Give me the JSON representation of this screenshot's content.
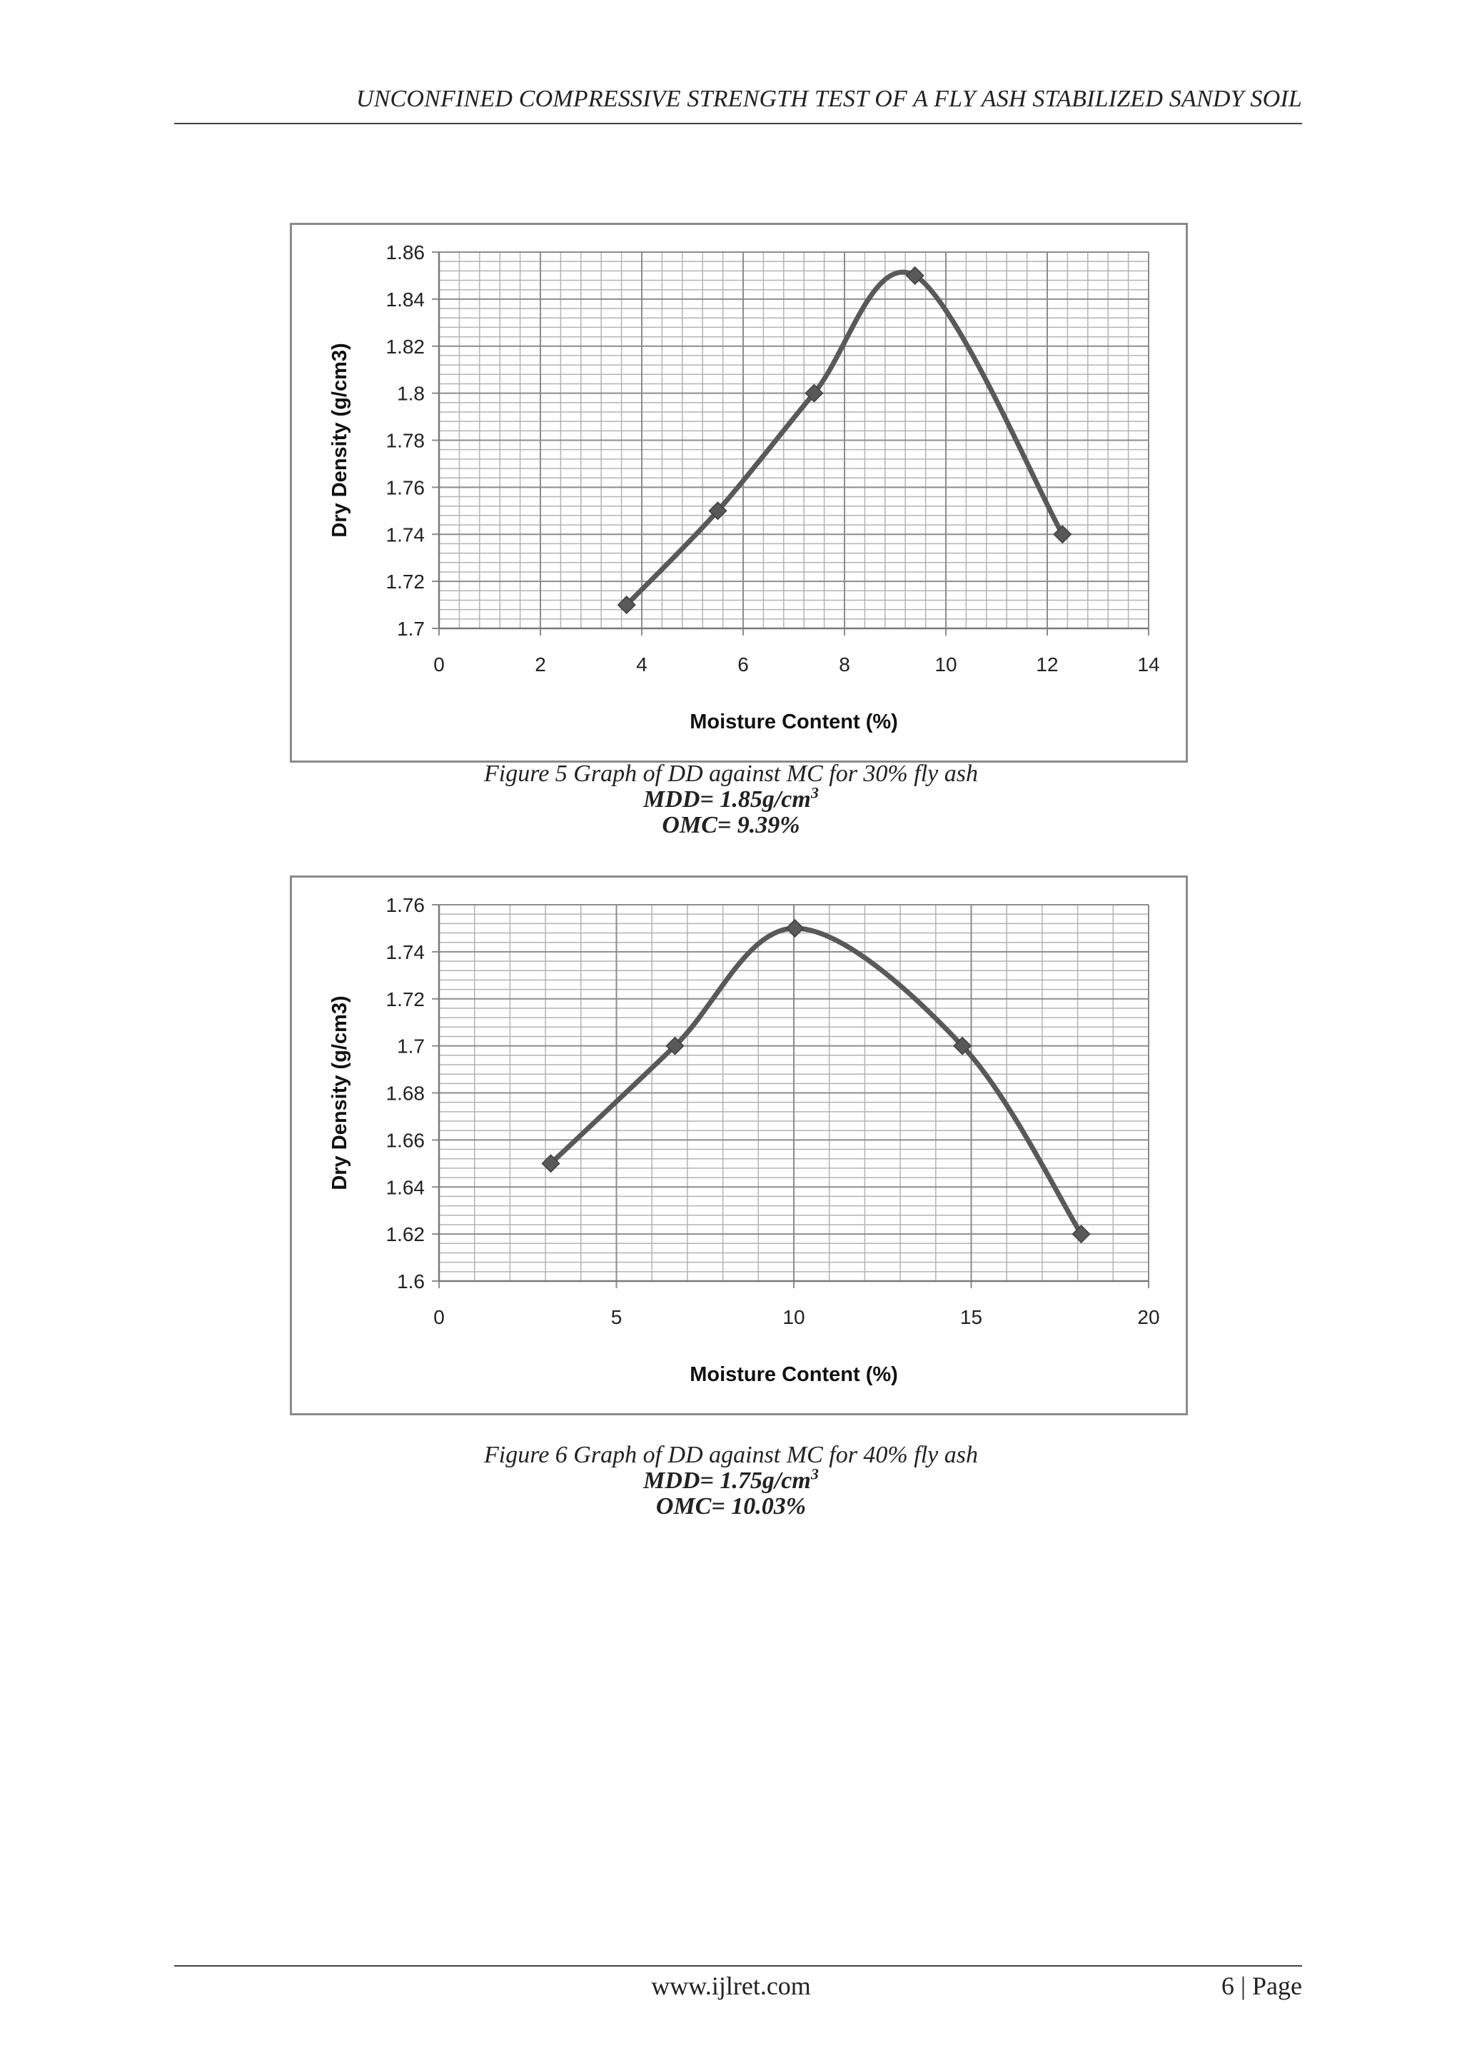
{
  "header": {
    "title": "UNCONFINED COMPRESSIVE STRENGTH TEST OF A FLY ASH STABILIZED SANDY SOIL"
  },
  "figure5": {
    "caption": "Figure 5 Graph of DD against MC for 30% fly ash",
    "mdd_label": "MDD= 1.85g/cm",
    "mdd_sup": "3",
    "omc_label": "OMC= 9.39%"
  },
  "figure6": {
    "caption": "Figure 6 Graph of DD against MC for 40% fly ash",
    "mdd_label": "MDD= 1.75g/cm",
    "mdd_sup": "3",
    "omc_label": "OMC= 10.03%"
  },
  "footer": {
    "site": "www.ijlret.com",
    "page": "6 | Page"
  },
  "colors": {
    "line": "#595959",
    "marker": "#595959",
    "grid_major": "#8c8c8c",
    "grid_minor": "#b3b3b3",
    "frame": "#8a8a8a"
  },
  "chart_data": [
    {
      "type": "line",
      "title": "",
      "xlabel": "Moisture Content (%)",
      "ylabel": "Dry Density (g/cm3)",
      "xlim": [
        0,
        14
      ],
      "ylim": [
        1.7,
        1.86
      ],
      "xticks": [
        "0",
        "2",
        "4",
        "6",
        "8",
        "10",
        "12",
        "14"
      ],
      "yticks": [
        "1.7",
        "1.72",
        "1.74",
        "1.76",
        "1.78",
        "1.8",
        "1.82",
        "1.84",
        "1.86"
      ],
      "x": [
        3.7,
        5.5,
        7.4,
        9.39,
        12.3
      ],
      "y": [
        1.71,
        1.75,
        1.8,
        1.85,
        1.74
      ],
      "smooth": true,
      "marker": "diamond",
      "grid": true
    },
    {
      "type": "line",
      "title": "",
      "xlabel": "Moisture Content (%)",
      "ylabel": "Dry Density (g/cm3)",
      "xlim": [
        0,
        20
      ],
      "ylim": [
        1.6,
        1.76
      ],
      "xticks": [
        "0",
        "5",
        "10",
        "15",
        "20"
      ],
      "yticks": [
        "1.6",
        "1.62",
        "1.64",
        "1.66",
        "1.68",
        "1.7",
        "1.72",
        "1.74",
        "1.76"
      ],
      "x": [
        3.15,
        6.65,
        10.03,
        14.75,
        18.1
      ],
      "y": [
        1.65,
        1.7,
        1.75,
        1.7,
        1.62
      ],
      "smooth": true,
      "marker": "diamond",
      "grid": true
    }
  ]
}
